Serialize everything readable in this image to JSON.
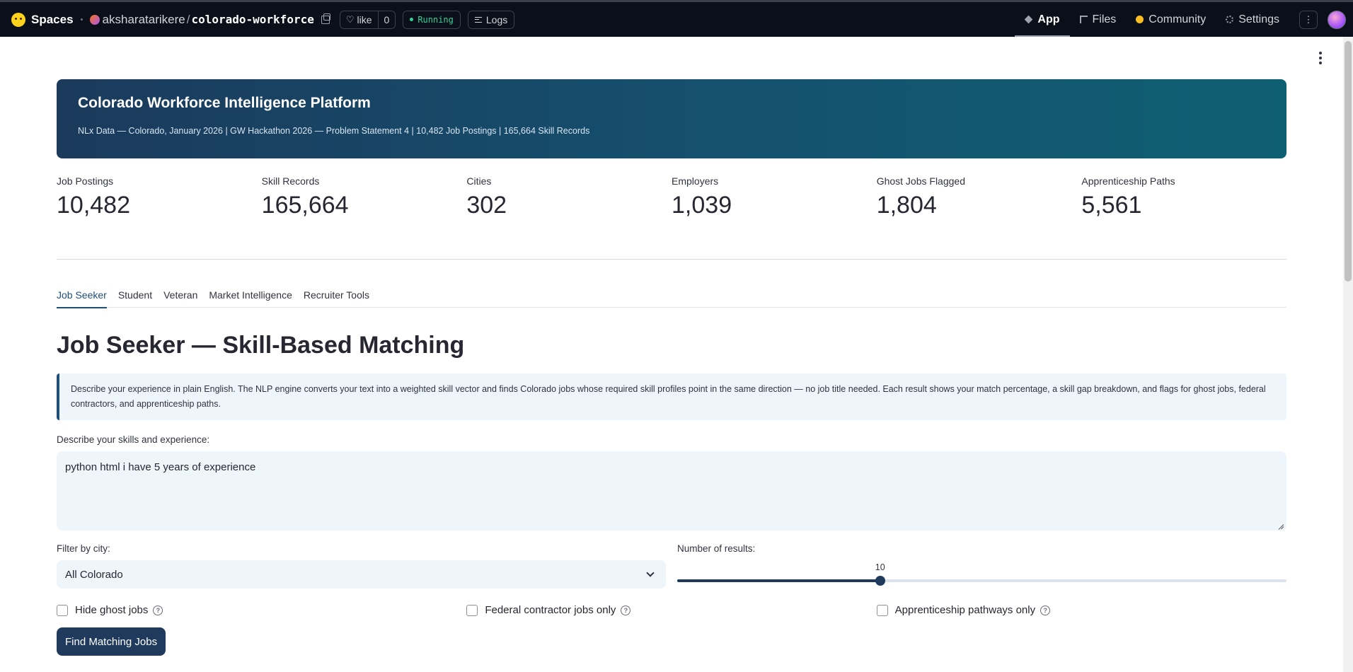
{
  "topbar": {
    "spaces_label": "Spaces",
    "owner": "aksharatarikere",
    "separator": "/",
    "repo": "colorado-workforce",
    "like_label": "like",
    "like_count": "0",
    "status": "Running",
    "logs_label": "Logs",
    "tabs": [
      {
        "label": "App",
        "icon": "app-cube-icon"
      },
      {
        "label": "Files",
        "icon": "files-icon"
      },
      {
        "label": "Community",
        "icon": "community-icon"
      },
      {
        "label": "Settings",
        "icon": "gear-icon"
      }
    ]
  },
  "hero": {
    "title": "Colorado Workforce Intelligence Platform",
    "subtitle": "NLx Data — Colorado, January 2026  |  GW Hackathon 2026 — Problem Statement 4  |  10,482 Job Postings  |  165,664 Skill Records"
  },
  "stats": [
    {
      "label": "Job Postings",
      "value": "10,482"
    },
    {
      "label": "Skill Records",
      "value": "165,664"
    },
    {
      "label": "Cities",
      "value": "302"
    },
    {
      "label": "Employers",
      "value": "1,039"
    },
    {
      "label": "Ghost Jobs Flagged",
      "value": "1,804"
    },
    {
      "label": "Apprenticeship Paths",
      "value": "5,561"
    }
  ],
  "tabs": [
    "Job Seeker",
    "Student",
    "Veteran",
    "Market Intelligence",
    "Recruiter Tools"
  ],
  "section": {
    "title": "Job Seeker — Skill-Based Matching",
    "info": "Describe your experience in plain English. The NLP engine converts your text into a weighted skill vector and finds Colorado jobs whose required skill profiles point in the same direction — no job title needed. Each result shows your match percentage, a skill gap breakdown, and flags for ghost jobs, federal contractors, and apprenticeship paths."
  },
  "form": {
    "skills_label": "Describe your skills and experience:",
    "skills_value": "python html i have 5 years of experience",
    "city_label": "Filter by city:",
    "city_value": "All Colorado",
    "results_label": "Number of results:",
    "results_value": 10,
    "results_display": "10",
    "results_fraction": 0.333,
    "checkboxes": [
      {
        "label": "Hide ghost jobs",
        "checked": false
      },
      {
        "label": "Federal contractor jobs only",
        "checked": false
      },
      {
        "label": "Apprenticeship pathways only",
        "checked": false
      }
    ],
    "submit_label": "Find Matching Jobs"
  },
  "colors": {
    "accent": "#1f3a5c",
    "hero_start": "#1b3a5c",
    "hero_end": "#0f5f72",
    "running": "#34d399"
  }
}
